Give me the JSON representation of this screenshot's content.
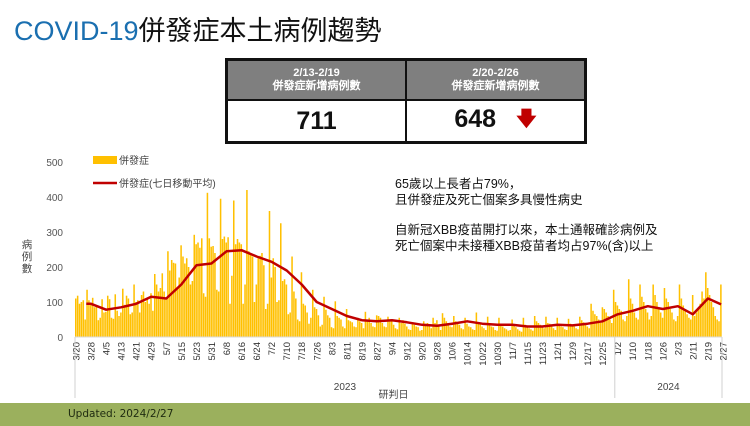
{
  "title": {
    "en": "COVID-19",
    "zh": "併發症本土病例趨勢"
  },
  "summary": [
    {
      "period": "2/13-2/19",
      "label": "併發症新增病例數",
      "value": "711"
    },
    {
      "period": "2/20-2/26",
      "label": "併發症新增病例數",
      "value": "648",
      "trend_icon": "arrow-down-icon",
      "trend_color": "#c00000"
    }
  ],
  "notes": [
    [
      "65歲以上長者占79%，",
      "且併發症及死亡個案多具慢性病史"
    ],
    [
      "自新冠XBB疫苗開打以來，本土通報確診病例及",
      "死亡個案中未接種XBB疫苗者均占97%(含)以上"
    ]
  ],
  "footer": "Updated: 2024/2/27",
  "chart_data": {
    "type": "bar+line",
    "xlabel": "研判日",
    "ylabel": "病例數",
    "ylim": [
      0,
      500
    ],
    "yticks": [
      0,
      100,
      200,
      300,
      400,
      500
    ],
    "grid": false,
    "legend_placement": "top-left",
    "date_range": [
      "2023-03-20",
      "2024-02-27"
    ],
    "x_ticks": [
      "3/20",
      "3/28",
      "4/5",
      "4/13",
      "4/21",
      "4/29",
      "5/7",
      "5/15",
      "5/23",
      "5/31",
      "6/8",
      "6/16",
      "6/24",
      "7/2",
      "7/10",
      "7/18",
      "7/26",
      "8/3",
      "8/11",
      "8/19",
      "8/27",
      "9/4",
      "9/12",
      "9/20",
      "9/28",
      "10/6",
      "10/14",
      "10/22",
      "10/30",
      "11/7",
      "11/15",
      "11/23",
      "12/1",
      "12/9",
      "12/17",
      "12/25",
      "1/2",
      "1/10",
      "1/18",
      "1/26",
      "2/3",
      "2/11",
      "2/19",
      "2/27"
    ],
    "year_groups": [
      {
        "label": "2023",
        "from": "3/20",
        "to": "12/31"
      },
      {
        "label": "2024",
        "from": "1/1",
        "to": "2/27"
      }
    ],
    "series": [
      {
        "name": "併發症",
        "type": "bar",
        "color": "#ffc000",
        "values": [
          110,
          118,
          95,
          100,
          105,
          50,
          135,
          105,
          98,
          112,
          85,
          90,
          48,
          55,
          108,
          70,
          72,
          118,
          108,
          55,
          52,
          122,
          75,
          60,
          70,
          138,
          92,
          118,
          110,
          65,
          70,
          150,
          100,
          105,
          70,
          120,
          130,
          100,
          110,
          95,
          125,
          75,
          180,
          150,
          130,
          140,
          182,
          130,
          110,
          245,
          190,
          220,
          212,
          210,
          140,
          170,
          262,
          230,
          210,
          225,
          200,
          150,
          160,
          292,
          265,
          270,
          255,
          282,
          125,
          115,
          412,
          282,
          258,
          260,
          240,
          135,
          130,
          395,
          280,
          287,
          270,
          285,
          95,
          175,
          390,
          265,
          280,
          270,
          265,
          95,
          150,
          420,
          245,
          235,
          230,
          100,
          150,
          225,
          232,
          240,
          205,
          80,
          95,
          360,
          170,
          225,
          200,
          100,
          105,
          325,
          160,
          165,
          150,
          65,
          70,
          230,
          130,
          110,
          50,
          45,
          185,
          95,
          90,
          70,
          38,
          55,
          135,
          85,
          80,
          62,
          30,
          35,
          115,
          78,
          62,
          55,
          28,
          25,
          102,
          60,
          55,
          50,
          30,
          25,
          80,
          48,
          45,
          42,
          30,
          28,
          55,
          45,
          40,
          25,
          72,
          50,
          55,
          40,
          30,
          28,
          62,
          60,
          55,
          40,
          30,
          28,
          58,
          50,
          45,
          35,
          25,
          22,
          55,
          40,
          48,
          38,
          30,
          22,
          20,
          42,
          35,
          30,
          28,
          18,
          20,
          45,
          38,
          40,
          32,
          25,
          55,
          40,
          48,
          30,
          20,
          68,
          55,
          45,
          40,
          30,
          28,
          60,
          45,
          42,
          35,
          25,
          22,
          55,
          38,
          30,
          28,
          22,
          20,
          70,
          40,
          38,
          30,
          25,
          20,
          58,
          35,
          30,
          28,
          20,
          18,
          55,
          32,
          30,
          25,
          22,
          18,
          20,
          50,
          32,
          28,
          22,
          18,
          15,
          55,
          35,
          30,
          25,
          22,
          18,
          60,
          45,
          40,
          35,
          30,
          25,
          58,
          40,
          38,
          30,
          25,
          20,
          55,
          35,
          30,
          28,
          22,
          20,
          52,
          38,
          35,
          30,
          25,
          22,
          58,
          48,
          42,
          35,
          30,
          25,
          95,
          75,
          65,
          60,
          50,
          40,
          85,
          80,
          70,
          60,
          50,
          40,
          135,
          100,
          90,
          80,
          75,
          50,
          45,
          60,
          165,
          110,
          95,
          70,
          55,
          50,
          150,
          115,
          100,
          80,
          70,
          50,
          60,
          150,
          120,
          100,
          85,
          70,
          55,
          140,
          110,
          100,
          80,
          70,
          50,
          45,
          60,
          150,
          110,
          90,
          80,
          65,
          55,
          50,
          120,
          60,
          70,
          80,
          95,
          130,
          110,
          185,
          140,
          120,
          100,
          85,
          60,
          50,
          45,
          150
        ]
      },
      {
        "name": "併發症(七日移動平均)",
        "type": "line",
        "color": "#c00000",
        "values_at_ticks": [
          null,
          95,
          78,
          85,
          95,
          115,
          110,
          150,
          205,
          210,
          245,
          248,
          230,
          215,
          190,
          150,
          100,
          80,
          60,
          48,
          45,
          48,
          42,
          35,
          32,
          38,
          45,
          38,
          35,
          35,
          30,
          30,
          35,
          33,
          38,
          45,
          65,
          75,
          88,
          80,
          88,
          65,
          110,
          93
        ]
      }
    ]
  }
}
